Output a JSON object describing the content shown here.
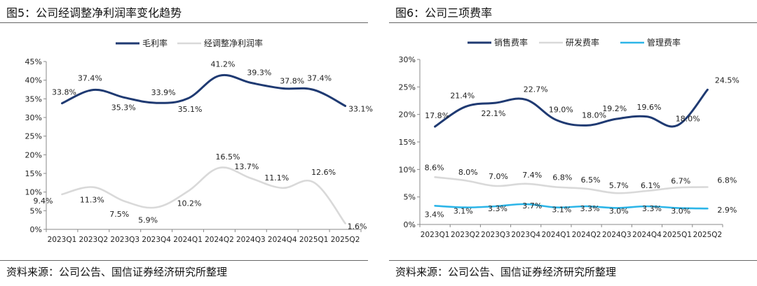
{
  "colors": {
    "dark_navy": "#1f3a72",
    "light_gray": "#d9d9d9",
    "cyan": "#2cb5e8"
  },
  "chart_data": [
    {
      "type": "line",
      "figure_title": "图5：公司经调整净利润率变化趋势",
      "source": "资料来源：公司公告、国信证券经济研究所整理",
      "categories": [
        "2023Q1",
        "2023Q2",
        "2023Q3",
        "2023Q4",
        "2024Q1",
        "2024Q2",
        "2024Q3",
        "2024Q4",
        "2025Q1",
        "2025Q2"
      ],
      "y_ticks": [
        "0%",
        "5%",
        "10%",
        "15%",
        "20%",
        "25%",
        "30%",
        "35%",
        "40%",
        "45%"
      ],
      "ylim": [
        0,
        45
      ],
      "legend_position": "top",
      "series": [
        {
          "name": "毛利率",
          "color": "#1f3a72",
          "values": [
            33.8,
            37.4,
            35.3,
            33.9,
            35.1,
            41.2,
            39.3,
            37.8,
            37.4,
            33.1
          ],
          "labels": [
            "33.8%",
            "37.4%",
            "35.3%",
            "33.9%",
            "35.1%",
            "41.2%",
            "39.3%",
            "37.8%",
            "37.4%",
            "33.1%"
          ]
        },
        {
          "name": "经调整净利润率",
          "color": "#d9d9d9",
          "values": [
            9.4,
            11.3,
            7.5,
            5.9,
            10.2,
            16.5,
            13.7,
            11.1,
            12.6,
            1.6
          ],
          "labels": [
            "9.4%",
            "11.3%",
            "7.5%",
            "5.9%",
            "10.2%",
            "16.5%",
            "13.7%",
            "11.1%",
            "12.6%",
            "1.6%"
          ]
        }
      ]
    },
    {
      "type": "line",
      "figure_title": "图6：公司三项费率",
      "source": "资料来源：公司公告、国信证券经济研究所整理",
      "categories": [
        "2023Q1",
        "2023Q2",
        "2023Q3",
        "2023Q4",
        "2024Q1",
        "2024Q2",
        "2024Q3",
        "2024Q4",
        "2025Q1",
        "2025Q2"
      ],
      "y_ticks": [
        "0%",
        "5%",
        "10%",
        "15%",
        "20%",
        "25%",
        "30%"
      ],
      "ylim": [
        0,
        30
      ],
      "legend_position": "top",
      "series": [
        {
          "name": "销售费率",
          "color": "#1f3a72",
          "values": [
            17.8,
            21.4,
            22.1,
            22.7,
            19.0,
            18.0,
            19.2,
            19.6,
            18.0,
            24.5
          ],
          "labels": [
            "17.8%",
            "21.4%",
            "22.1%",
            "22.7%",
            "19.0%",
            "18.0%",
            "19.2%",
            "19.6%",
            "18.0%",
            "24.5%"
          ]
        },
        {
          "name": "研发费率",
          "color": "#d9d9d9",
          "values": [
            8.6,
            8.0,
            7.0,
            7.4,
            6.8,
            6.5,
            5.7,
            6.1,
            6.7,
            6.8
          ],
          "labels": [
            "8.6%",
            "8.0%",
            "7.0%",
            "7.4%",
            "6.8%",
            "6.5%",
            "5.7%",
            "6.1%",
            "6.7%",
            "6.8%"
          ]
        },
        {
          "name": "管理费率",
          "color": "#2cb5e8",
          "values": [
            3.4,
            3.1,
            3.3,
            3.7,
            3.1,
            3.3,
            3.0,
            3.3,
            3.0,
            2.9
          ],
          "labels": [
            "3.4%",
            "3.1%",
            "3.3%",
            "3.7%",
            "3.1%",
            "3.3%",
            "3.0%",
            "3.3%",
            "3.0%",
            "2.9%"
          ]
        }
      ]
    }
  ]
}
